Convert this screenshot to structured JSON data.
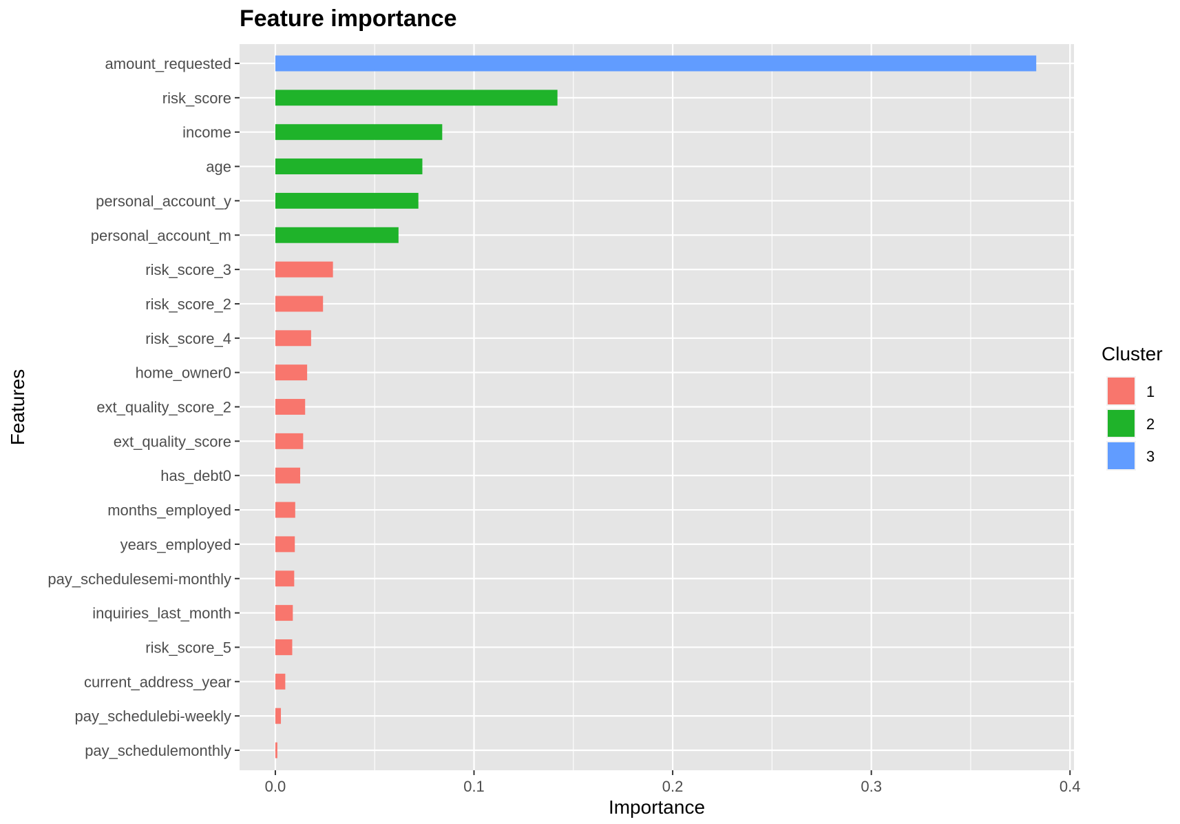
{
  "chart_data": {
    "type": "bar",
    "orientation": "horizontal",
    "title": "Feature importance",
    "xlabel": "Importance",
    "ylabel": "Features",
    "xlim": [
      -0.018,
      0.402
    ],
    "x_ticks": [
      0.0,
      0.1,
      0.2,
      0.3,
      0.4
    ],
    "x_tick_labels": [
      "0.0",
      "0.1",
      "0.2",
      "0.3",
      "0.4"
    ],
    "grid": true,
    "legend": {
      "title": "Cluster",
      "placement": "right",
      "entries": [
        {
          "label": "1",
          "color": "#F8766D"
        },
        {
          "label": "2",
          "color": "#1FB32A"
        },
        {
          "label": "3",
          "color": "#619CFF"
        }
      ]
    },
    "categories": [
      "amount_requested",
      "risk_score",
      "income",
      "age",
      "personal_account_y",
      "personal_account_m",
      "risk_score_3",
      "risk_score_2",
      "risk_score_4",
      "home_owner0",
      "ext_quality_score_2",
      "ext_quality_score",
      "has_debt0",
      "months_employed",
      "years_employed",
      "pay_schedulesemi-monthly",
      "inquiries_last_month",
      "risk_score_5",
      "current_address_year",
      "pay_schedulebi-weekly",
      "pay_schedulemonthly"
    ],
    "values": [
      0.383,
      0.142,
      0.084,
      0.074,
      0.072,
      0.062,
      0.029,
      0.024,
      0.018,
      0.016,
      0.015,
      0.014,
      0.0125,
      0.01,
      0.0098,
      0.0095,
      0.0088,
      0.0085,
      0.005,
      0.0028,
      0.001
    ],
    "clusters": [
      "3",
      "2",
      "2",
      "2",
      "2",
      "2",
      "1",
      "1",
      "1",
      "1",
      "1",
      "1",
      "1",
      "1",
      "1",
      "1",
      "1",
      "1",
      "1",
      "1",
      "1"
    ]
  },
  "colors": {
    "panel_background": "#E5E5E5",
    "grid": "#FFFFFF",
    "tick": "#333333"
  }
}
